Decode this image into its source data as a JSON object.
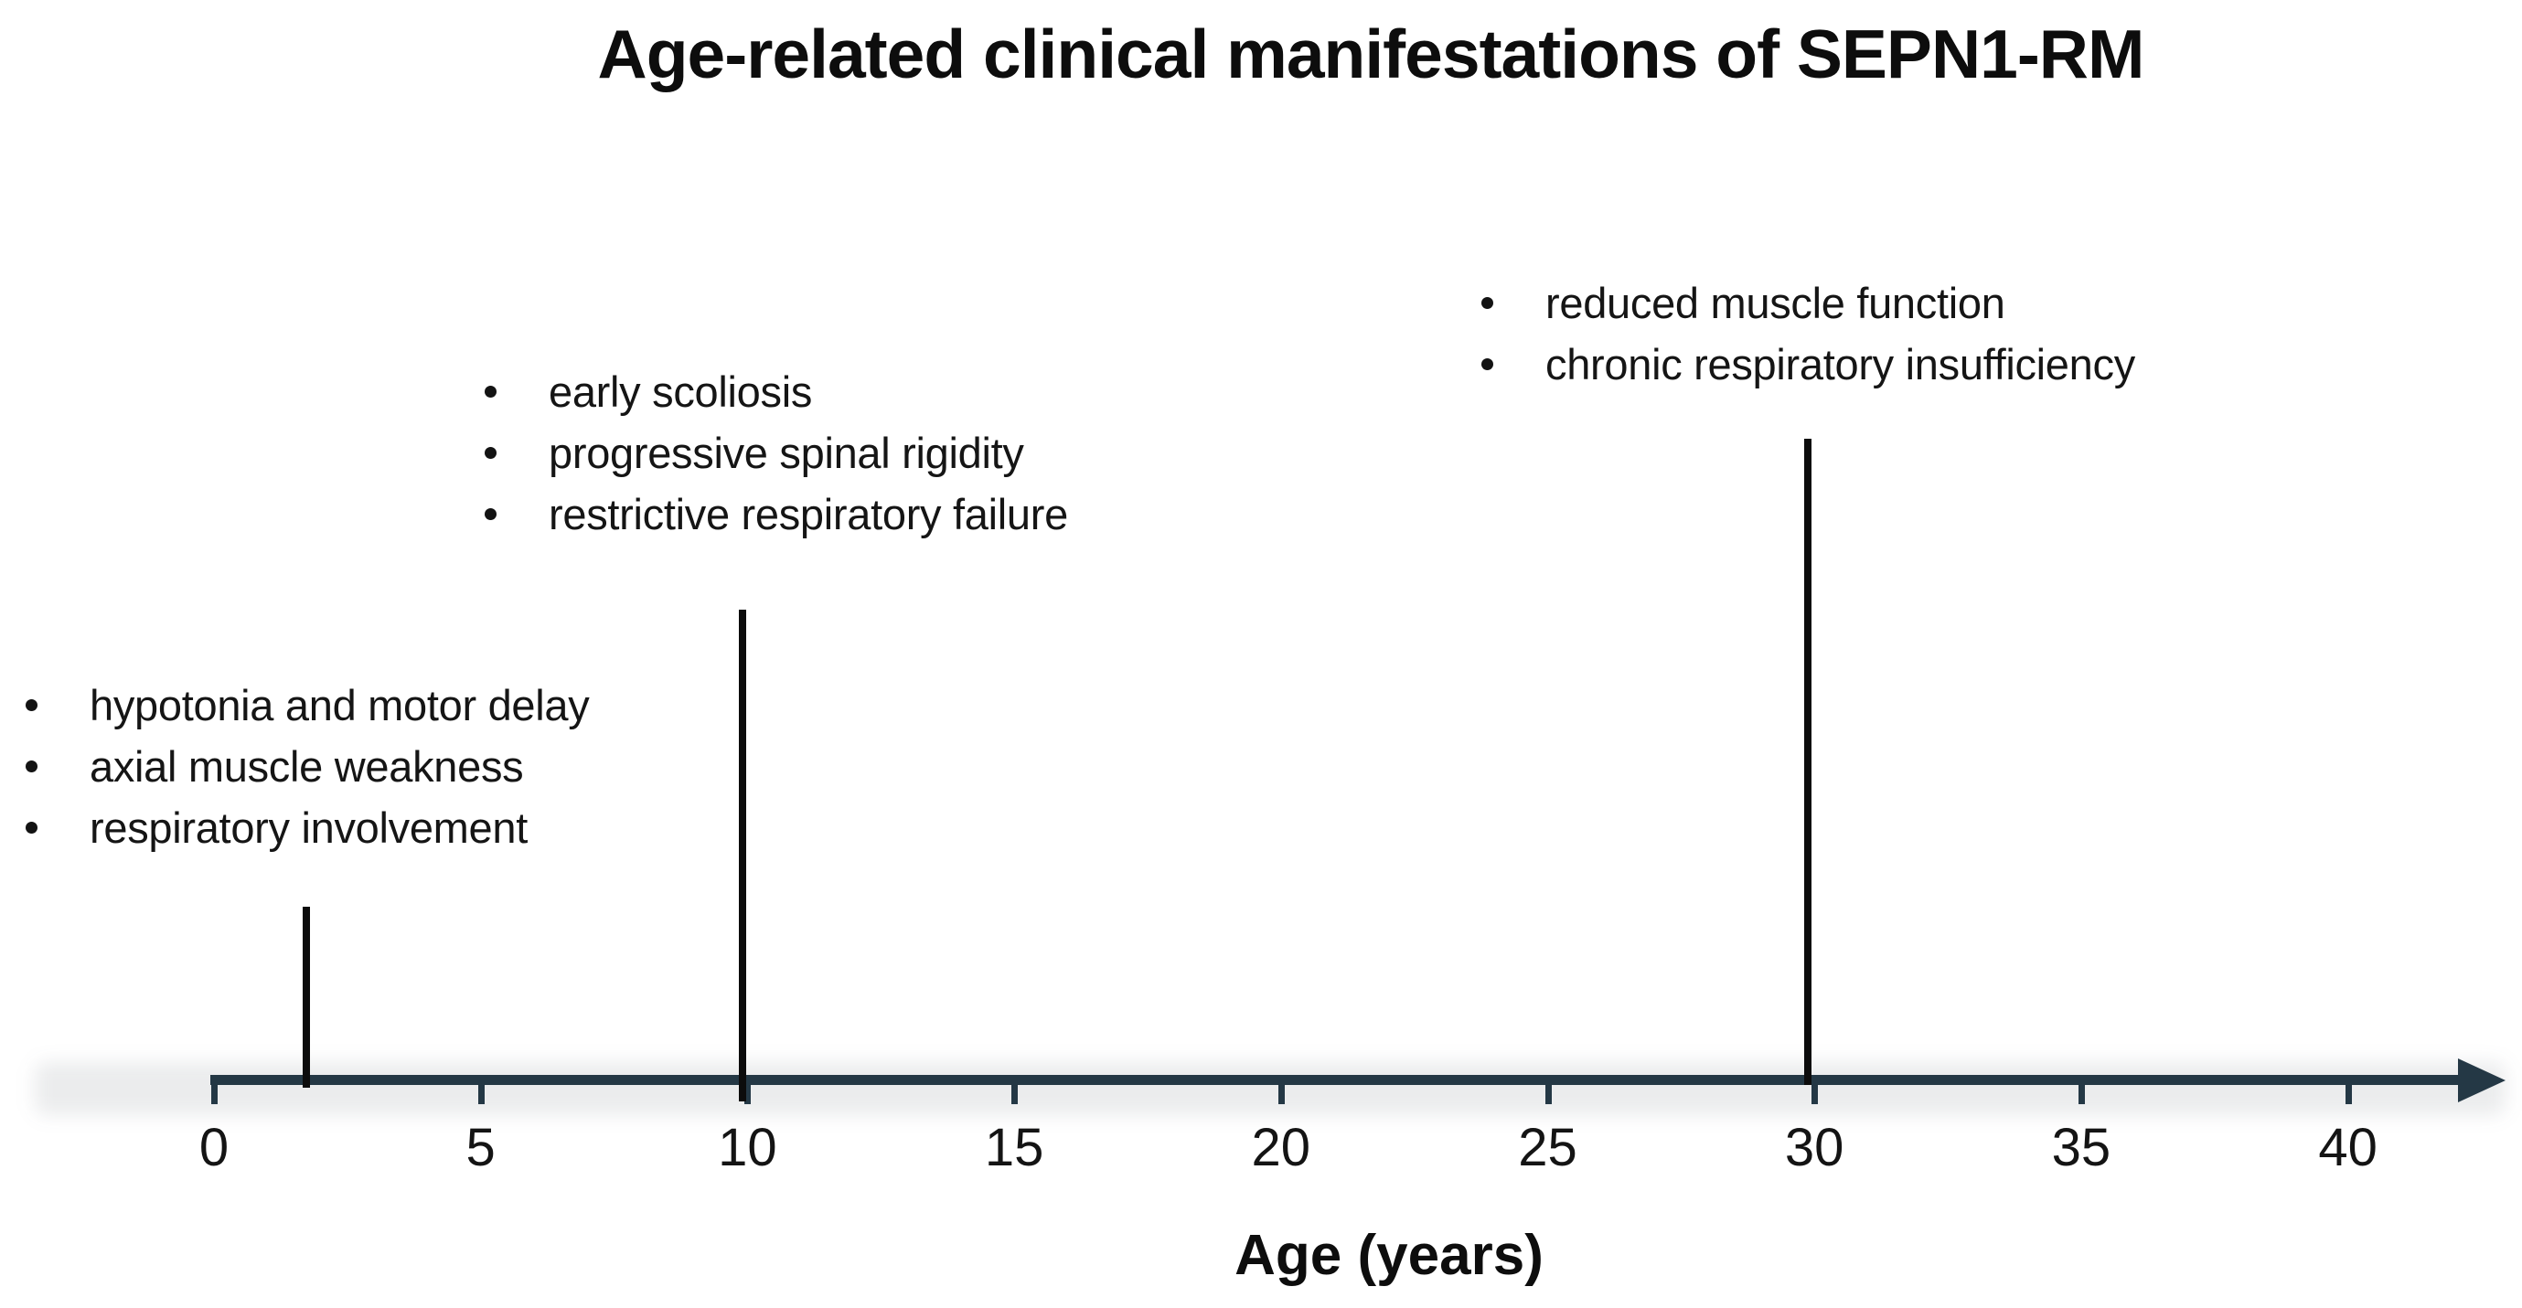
{
  "title": "Age-related clinical manifestations of SEPN1-RM",
  "axis": {
    "label": "Age (years)",
    "ticks": [
      "0",
      "5",
      "10",
      "15",
      "20",
      "25",
      "30",
      "35",
      "40"
    ]
  },
  "colors": {
    "axis": "#243845",
    "marker": "#0c0c0c",
    "text": "#151515"
  },
  "events": [
    {
      "age_years": 2,
      "items": [
        "hypotonia and motor delay",
        "axial muscle weakness",
        "respiratory involvement"
      ]
    },
    {
      "age_years": 10,
      "items": [
        "early scoliosis",
        "progressive spinal rigidity",
        "restrictive respiratory failure"
      ]
    },
    {
      "age_years": 30,
      "items": [
        "reduced muscle function",
        "chronic respiratory insufficiency"
      ]
    }
  ],
  "chart_data": {
    "type": "timeline",
    "title": "Age-related clinical manifestations of SEPN1-RM",
    "xlabel": "Age (years)",
    "xlim": [
      0,
      43
    ],
    "xticks": [
      0,
      5,
      10,
      15,
      20,
      25,
      30,
      35,
      40
    ],
    "grid": false,
    "events": [
      {
        "age": 2,
        "annotations": [
          "hypotonia and motor delay",
          "axial muscle weakness",
          "respiratory involvement"
        ]
      },
      {
        "age": 10,
        "annotations": [
          "early scoliosis",
          "progressive spinal rigidity",
          "restrictive respiratory failure"
        ]
      },
      {
        "age": 30,
        "annotations": [
          "reduced muscle function",
          "chronic respiratory insufficiency"
        ]
      }
    ]
  }
}
